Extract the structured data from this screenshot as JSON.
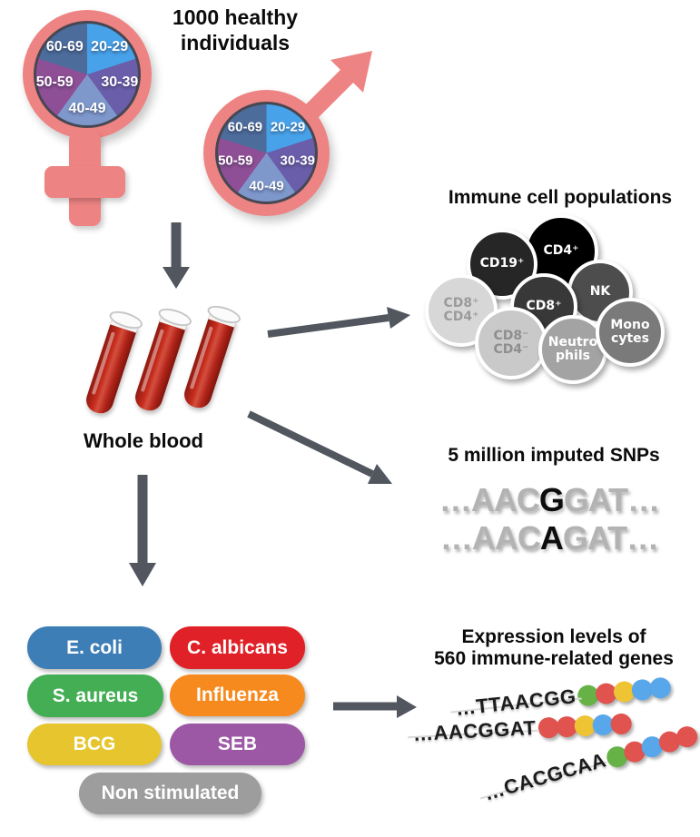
{
  "arrows": {
    "color": "#51565f"
  },
  "header": {
    "title_line1": "1000 healthy",
    "title_line2": "individuals"
  },
  "demographics": {
    "symbol_color": "#ee8383",
    "age_pie": {
      "segments": [
        {
          "label": "20-29",
          "color": "#47a2e9"
        },
        {
          "label": "30-39",
          "color": "#6a5eab"
        },
        {
          "label": "40-49",
          "color": "#7e98cc"
        },
        {
          "label": "50-59",
          "color": "#8f4f96"
        },
        {
          "label": "60-69",
          "color": "#4c6c9c"
        }
      ]
    }
  },
  "blood": {
    "label": "Whole blood"
  },
  "immune_cells": {
    "title": "Immune cell populations",
    "cells": [
      {
        "name": "cd4pos",
        "line1": "CD4⁺",
        "line2": "",
        "bg": "#000000",
        "fg": "#ffffff"
      },
      {
        "name": "cd19pos",
        "line1": "CD19⁺",
        "line2": "",
        "bg": "#262626",
        "fg": "#ffffff"
      },
      {
        "name": "nk",
        "line1": "NK",
        "line2": "",
        "bg": "#4d4d4d",
        "fg": "#ffffff"
      },
      {
        "name": "cd8pos",
        "line1": "CD8⁺",
        "line2": "",
        "bg": "#383838",
        "fg": "#ffffff"
      },
      {
        "name": "cd8pos-cd4pos",
        "line1": "CD8⁺",
        "line2": "CD4⁺",
        "bg": "#d7d7d7",
        "fg": "#9b9b9b"
      },
      {
        "name": "cd8neg-cd4neg",
        "line1": "CD8⁻",
        "line2": "CD4⁻",
        "bg": "#c9c9c9",
        "fg": "#8e8e8e"
      },
      {
        "name": "neutrophils",
        "line1": "Neutro",
        "line2": "phils",
        "bg": "#a3a3a3",
        "fg": "#ffffff"
      },
      {
        "name": "monocytes",
        "line1": "Mono",
        "line2": "cytes",
        "bg": "#7a7a7a",
        "fg": "#ffffff"
      }
    ]
  },
  "snps": {
    "title": "5 million imputed SNPs",
    "sequences": [
      {
        "prefix": "…AAC",
        "variant": "G",
        "suffix": "GAT…"
      },
      {
        "prefix": "…AAC",
        "variant": "A",
        "suffix": "GAT…"
      }
    ]
  },
  "stimulations": {
    "items": [
      {
        "label": "E. coli",
        "color": "#3d7eb6"
      },
      {
        "label": "C. albicans",
        "color": "#e02127"
      },
      {
        "label": "S. aureus",
        "color": "#43ae53"
      },
      {
        "label": "Influenza",
        "color": "#f68a1e"
      },
      {
        "label": "BCG",
        "color": "#e6c52e"
      },
      {
        "label": "SEB",
        "color": "#9c58a5"
      },
      {
        "label": "Non stimulated",
        "color": "#9d9d9d"
      }
    ]
  },
  "expression": {
    "title_line1": "Expression levels of",
    "title_line2": "560 immune-related genes",
    "dot_colors": {
      "green": "#66b247",
      "red": "#e0534f",
      "yellow": "#eec435",
      "blue": "#58a7ea"
    },
    "strands": [
      {
        "sequence": "…TTAACGG",
        "dots": [
          "green",
          "red",
          "yellow",
          "blue",
          "blue"
        ]
      },
      {
        "sequence": "…AACGGAT",
        "dots": [
          "red",
          "red",
          "yellow",
          "blue",
          "red"
        ]
      },
      {
        "sequence": "…CACGCAA",
        "dots": [
          "green",
          "red",
          "blue",
          "red",
          "red"
        ]
      }
    ]
  }
}
